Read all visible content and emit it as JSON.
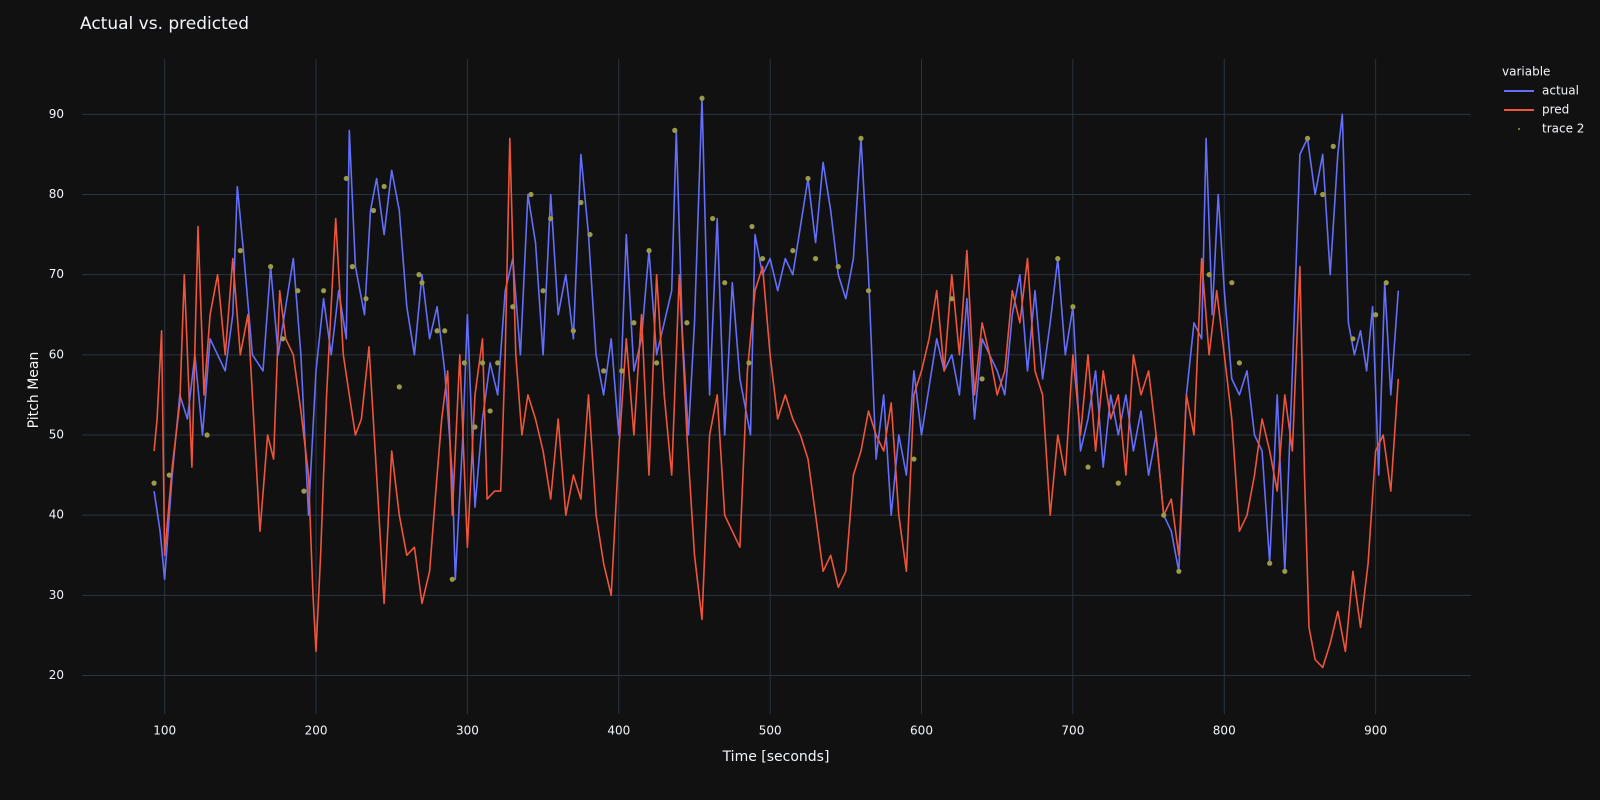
{
  "chart_data": {
    "type": "line",
    "title": "Actual vs. predicted",
    "x_label": "Time [seconds]",
    "y_label": "Pitch Mean",
    "legend_title": "variable",
    "xlim": [
      45.4,
      963
    ],
    "ylim": [
      15.2,
      96.9
    ],
    "xticks": [
      100,
      200,
      300,
      400,
      500,
      600,
      700,
      800,
      900
    ],
    "yticks": [
      20,
      30,
      40,
      50,
      60,
      70,
      80,
      90
    ],
    "grid": true,
    "legend": "right",
    "series": [
      {
        "name": "actual",
        "color": "#636efa",
        "x": [
          93,
          97,
          100,
          105,
          110,
          115,
          120,
          125,
          130,
          135,
          140,
          145,
          148,
          152,
          158,
          165,
          170,
          175,
          180,
          185,
          190,
          195,
          200,
          205,
          210,
          215,
          220,
          222,
          226,
          232,
          236,
          240,
          245,
          250,
          255,
          260,
          265,
          270,
          275,
          280,
          285,
          290,
          292,
          297,
          300,
          305,
          310,
          315,
          320,
          325,
          330,
          335,
          340,
          345,
          350,
          355,
          360,
          365,
          370,
          375,
          380,
          385,
          390,
          395,
          400,
          405,
          410,
          415,
          420,
          425,
          430,
          435,
          438,
          442,
          446,
          450,
          455,
          460,
          465,
          470,
          475,
          480,
          487,
          490,
          495,
          500,
          505,
          510,
          515,
          520,
          525,
          530,
          535,
          540,
          545,
          550,
          555,
          560,
          565,
          570,
          575,
          580,
          585,
          590,
          595,
          600,
          605,
          610,
          615,
          620,
          625,
          630,
          635,
          640,
          645,
          650,
          655,
          660,
          665,
          670,
          675,
          680,
          685,
          690,
          695,
          700,
          705,
          710,
          715,
          720,
          725,
          730,
          735,
          740,
          745,
          750,
          755,
          760,
          765,
          770,
          775,
          780,
          785,
          788,
          792,
          796,
          800,
          805,
          810,
          815,
          820,
          825,
          830,
          835,
          840,
          845,
          850,
          855,
          860,
          865,
          870,
          875,
          878,
          882,
          886,
          890,
          894,
          898,
          902,
          906,
          910,
          915
        ],
        "values": [
          43,
          38,
          32,
          45,
          55,
          52,
          60,
          50,
          62,
          60,
          58,
          65,
          81,
          73,
          60,
          58,
          71,
          60,
          66,
          72,
          60,
          40,
          58,
          67,
          60,
          68,
          62,
          88,
          71,
          65,
          78,
          82,
          75,
          83,
          78,
          66,
          60,
          70,
          62,
          66,
          58,
          45,
          32,
          50,
          65,
          41,
          52,
          59,
          55,
          68,
          72,
          60,
          80,
          74,
          60,
          80,
          65,
          70,
          62,
          85,
          75,
          60,
          55,
          62,
          50,
          75,
          58,
          62,
          73,
          60,
          64,
          68,
          88,
          63,
          50,
          64,
          92,
          55,
          77,
          50,
          69,
          57,
          50,
          75,
          70,
          72,
          68,
          72,
          70,
          76,
          82,
          74,
          84,
          78,
          70,
          67,
          72,
          87,
          70,
          47,
          55,
          40,
          50,
          45,
          58,
          50,
          56,
          62,
          58,
          60,
          55,
          67,
          52,
          62,
          60,
          58,
          55,
          65,
          70,
          58,
          68,
          57,
          64,
          72,
          60,
          66,
          48,
          52,
          58,
          46,
          55,
          50,
          55,
          48,
          53,
          45,
          50,
          40,
          38,
          33,
          55,
          64,
          62,
          87,
          65,
          80,
          68,
          57,
          55,
          58,
          50,
          48,
          34,
          55,
          33,
          58,
          85,
          87,
          80,
          85,
          70,
          85,
          90,
          64,
          60,
          63,
          58,
          66,
          45,
          69,
          55,
          68
        ]
      },
      {
        "name": "pred",
        "color": "#ef553b",
        "x": [
          93,
          95,
          98,
          100,
          105,
          110,
          113,
          118,
          122,
          126,
          130,
          135,
          140,
          145,
          150,
          155,
          160,
          163,
          168,
          172,
          176,
          180,
          185,
          190,
          195,
          198,
          200,
          203,
          207,
          213,
          218,
          222,
          226,
          230,
          235,
          240,
          245,
          250,
          255,
          260,
          265,
          270,
          275,
          280,
          283,
          287,
          290,
          295,
          300,
          305,
          310,
          313,
          318,
          322,
          325,
          328,
          332,
          336,
          340,
          345,
          350,
          355,
          360,
          365,
          370,
          375,
          380,
          385,
          390,
          395,
          400,
          405,
          410,
          415,
          420,
          425,
          430,
          435,
          440,
          445,
          450,
          455,
          460,
          465,
          470,
          475,
          480,
          485,
          490,
          495,
          500,
          505,
          510,
          515,
          520,
          525,
          530,
          535,
          540,
          545,
          550,
          555,
          560,
          565,
          570,
          575,
          580,
          585,
          590,
          595,
          600,
          605,
          610,
          615,
          620,
          625,
          630,
          635,
          640,
          645,
          650,
          655,
          660,
          665,
          670,
          675,
          680,
          685,
          690,
          695,
          700,
          705,
          710,
          715,
          720,
          725,
          730,
          735,
          740,
          745,
          750,
          755,
          760,
          765,
          770,
          775,
          780,
          785,
          790,
          795,
          800,
          805,
          810,
          815,
          820,
          825,
          830,
          835,
          840,
          845,
          850,
          853,
          856,
          860,
          865,
          870,
          875,
          880,
          885,
          890,
          895,
          900,
          905,
          910,
          915
        ],
        "values": [
          48,
          52,
          63,
          35,
          46,
          54,
          70,
          46,
          76,
          55,
          65,
          70,
          60,
          72,
          60,
          65,
          48,
          38,
          50,
          47,
          68,
          62,
          60,
          53,
          45,
          30,
          23,
          35,
          55,
          77,
          60,
          55,
          50,
          52,
          61,
          45,
          29,
          48,
          40,
          35,
          36,
          29,
          33,
          45,
          52,
          58,
          40,
          60,
          36,
          55,
          62,
          42,
          43,
          43,
          60,
          87,
          60,
          50,
          55,
          52,
          48,
          42,
          52,
          40,
          45,
          42,
          55,
          40,
          34,
          30,
          48,
          62,
          50,
          65,
          45,
          70,
          55,
          45,
          70,
          50,
          35,
          27,
          50,
          55,
          40,
          38,
          36,
          58,
          68,
          71,
          60,
          52,
          55,
          52,
          50,
          47,
          40,
          33,
          35,
          31,
          33,
          45,
          48,
          53,
          50,
          48,
          54,
          40,
          33,
          55,
          58,
          62,
          68,
          58,
          70,
          60,
          73,
          55,
          64,
          60,
          55,
          58,
          68,
          64,
          72,
          58,
          55,
          40,
          50,
          45,
          60,
          50,
          60,
          48,
          58,
          52,
          55,
          45,
          60,
          55,
          58,
          50,
          40,
          42,
          35,
          55,
          50,
          72,
          60,
          68,
          60,
          52,
          38,
          40,
          45,
          52,
          48,
          43,
          55,
          48,
          71,
          45,
          26,
          22,
          21,
          24,
          28,
          23,
          33,
          26,
          34,
          48,
          50,
          43,
          57
        ]
      },
      {
        "name": "trace 2",
        "color": "#9a9a48",
        "mode": "markers",
        "x": [
          93,
          103,
          128,
          150,
          170,
          178,
          188,
          192,
          205,
          220,
          224,
          233,
          238,
          245,
          255,
          268,
          270,
          280,
          285,
          290,
          298,
          305,
          310,
          315,
          320,
          330,
          342,
          350,
          355,
          370,
          375,
          381,
          390,
          402,
          410,
          420,
          425,
          437,
          445,
          455,
          462,
          470,
          486,
          488,
          495,
          515,
          525,
          530,
          545,
          560,
          565,
          595,
          620,
          640,
          690,
          700,
          710,
          730,
          760,
          770,
          790,
          805,
          810,
          830,
          840,
          855,
          865,
          872,
          885,
          900,
          907
        ],
        "values": [
          44,
          45,
          50,
          73,
          71,
          62,
          68,
          43,
          68,
          82,
          71,
          67,
          78,
          81,
          56,
          70,
          69,
          63,
          63,
          32,
          59,
          51,
          59,
          53,
          59,
          66,
          80,
          68,
          77,
          63,
          79,
          75,
          58,
          58,
          64,
          73,
          59,
          88,
          64,
          92,
          77,
          69,
          59,
          76,
          72,
          73,
          82,
          72,
          71,
          87,
          68,
          47,
          67,
          57,
          72,
          66,
          46,
          44,
          40,
          33,
          70,
          69,
          59,
          34,
          33,
          87,
          80,
          86,
          62,
          65,
          69
        ]
      }
    ]
  }
}
